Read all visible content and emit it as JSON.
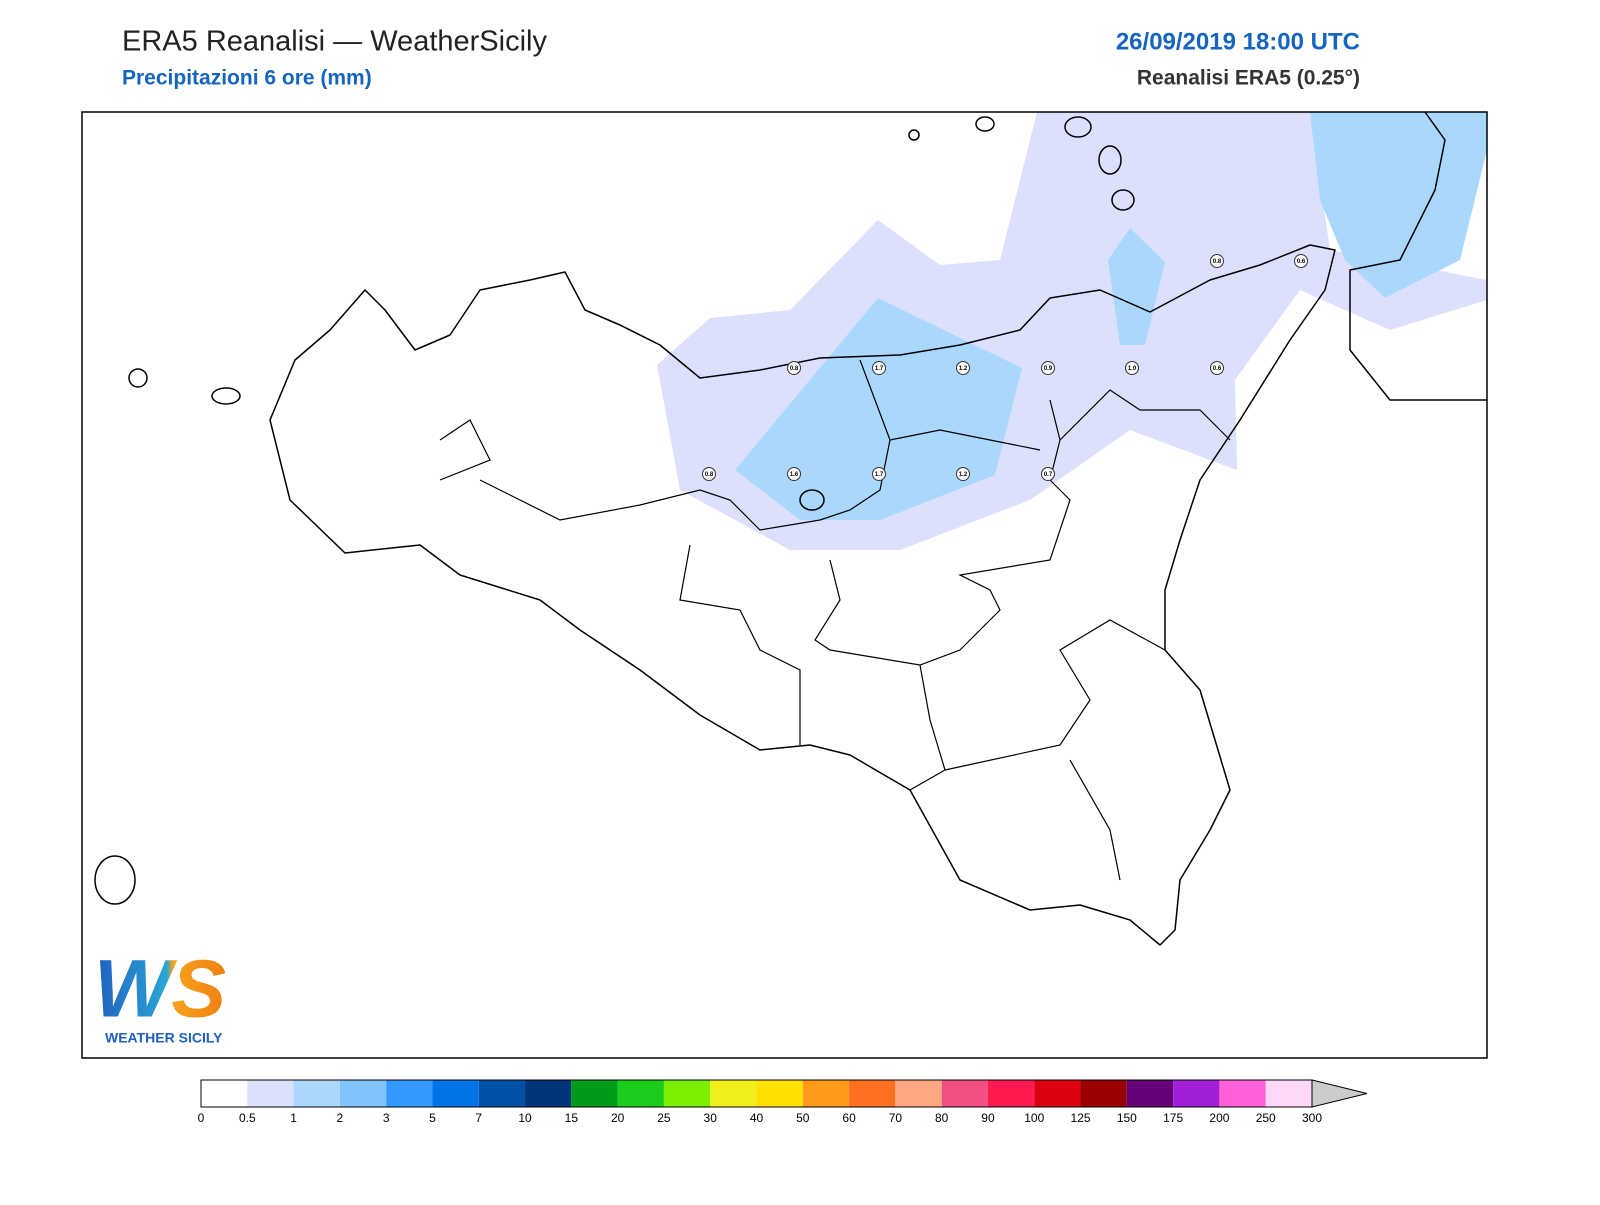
{
  "header": {
    "title": "ERA5 Reanalisi — WeatherSicily",
    "subtitle": "Precipitazioni 6 ore (mm)",
    "datetime": "26/09/2019 18:00 UTC",
    "source": "Reanalisi ERA5 (0.25°)"
  },
  "points": [
    {
      "label": "0.8"
    },
    {
      "label": "0.6"
    },
    {
      "label": "0.8"
    },
    {
      "label": "1.7"
    },
    {
      "label": "1.2"
    },
    {
      "label": "0.9"
    },
    {
      "label": "1.0"
    },
    {
      "label": "0.6"
    },
    {
      "label": "0.8"
    },
    {
      "label": "1.6"
    },
    {
      "label": "1.7"
    },
    {
      "label": "1.2"
    },
    {
      "label": "0.7"
    }
  ],
  "colorbar": {
    "levels": [
      "0",
      "0.5",
      "1",
      "2",
      "3",
      "5",
      "7",
      "10",
      "15",
      "20",
      "25",
      "30",
      "40",
      "50",
      "60",
      "70",
      "80",
      "90",
      "100",
      "125",
      "150",
      "175",
      "200",
      "250",
      "300"
    ],
    "colors": [
      "#ffffff",
      "#dde0fc",
      "#aad8fc",
      "#7fc4fc",
      "#3399ff",
      "#0073e6",
      "#0050a8",
      "#00357a",
      "#009a1a",
      "#1ccc1c",
      "#7cf000",
      "#f0f01a",
      "#ffe000",
      "#ff9a1a",
      "#ff7020",
      "#ffa880",
      "#f05080",
      "#ff1a50",
      "#dd0010",
      "#990000",
      "#660077",
      "#a020d8",
      "#ff60d8",
      "#ffd8f8"
    ],
    "over_color": "#cccccc"
  },
  "logo": {
    "mark": "WS",
    "text": "WEATHER SICILY"
  }
}
